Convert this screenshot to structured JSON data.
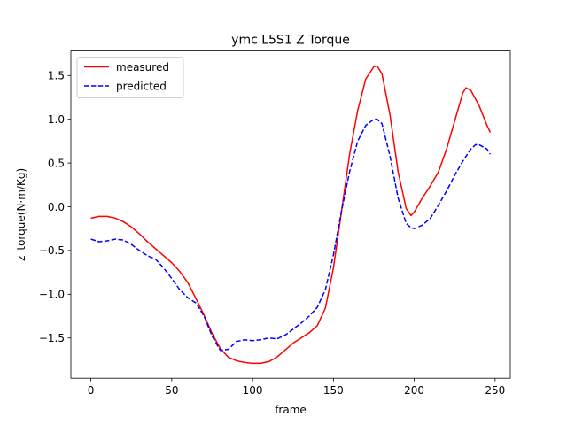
{
  "chart_data": {
    "type": "line",
    "title": "ymc L5S1 Z Torque",
    "xlabel": "frame",
    "ylabel": "z_torque(N·m/Kg)",
    "xlim": [
      -12.4,
      259.4
    ],
    "ylim": [
      -1.96,
      1.78
    ],
    "xticks": [
      0,
      50,
      100,
      150,
      200,
      250
    ],
    "yticks": [
      -1.5,
      -1.0,
      -0.5,
      0.0,
      0.5,
      1.0,
      1.5
    ],
    "xtick_labels": [
      "0",
      "50",
      "100",
      "150",
      "200",
      "250"
    ],
    "ytick_labels": [
      "−1.5",
      "−1.0",
      "−0.5",
      "0.0",
      "0.5",
      "1.0",
      "1.5"
    ],
    "grid": false,
    "legend_position": "top-left",
    "series": [
      {
        "name": "measured",
        "color": "#ff0000",
        "style": "solid",
        "x": [
          0,
          5,
          10,
          15,
          20,
          25,
          30,
          35,
          40,
          45,
          50,
          55,
          60,
          65,
          70,
          75,
          80,
          85,
          90,
          95,
          100,
          105,
          110,
          115,
          120,
          125,
          130,
          135,
          140,
          145,
          150,
          155,
          160,
          165,
          170,
          175,
          177,
          180,
          185,
          190,
          195,
          198,
          200,
          205,
          210,
          215,
          220,
          225,
          230,
          232,
          235,
          240,
          245,
          247
        ],
        "y": [
          -0.13,
          -0.11,
          -0.11,
          -0.13,
          -0.17,
          -0.23,
          -0.31,
          -0.4,
          -0.48,
          -0.56,
          -0.64,
          -0.74,
          -0.87,
          -1.05,
          -1.24,
          -1.45,
          -1.62,
          -1.72,
          -1.76,
          -1.78,
          -1.79,
          -1.79,
          -1.77,
          -1.72,
          -1.64,
          -1.56,
          -1.5,
          -1.44,
          -1.36,
          -1.16,
          -0.7,
          -0.05,
          0.6,
          1.1,
          1.46,
          1.6,
          1.61,
          1.52,
          1.05,
          0.4,
          -0.02,
          -0.1,
          -0.06,
          0.1,
          0.24,
          0.4,
          0.66,
          0.98,
          1.3,
          1.36,
          1.33,
          1.16,
          0.93,
          0.85
        ]
      },
      {
        "name": "predicted",
        "color": "#0000ff",
        "style": "dashed",
        "x": [
          0,
          5,
          10,
          15,
          20,
          25,
          30,
          35,
          40,
          45,
          50,
          55,
          60,
          65,
          70,
          75,
          80,
          85,
          90,
          95,
          100,
          105,
          110,
          115,
          120,
          125,
          130,
          135,
          140,
          145,
          150,
          155,
          160,
          165,
          170,
          175,
          177,
          180,
          185,
          190,
          195,
          198,
          200,
          205,
          210,
          215,
          220,
          225,
          230,
          235,
          238,
          240,
          245,
          247
        ],
        "y": [
          -0.37,
          -0.4,
          -0.39,
          -0.37,
          -0.38,
          -0.43,
          -0.5,
          -0.56,
          -0.6,
          -0.7,
          -0.82,
          -0.95,
          -1.04,
          -1.1,
          -1.25,
          -1.48,
          -1.64,
          -1.63,
          -1.54,
          -1.52,
          -1.53,
          -1.52,
          -1.5,
          -1.51,
          -1.47,
          -1.4,
          -1.33,
          -1.25,
          -1.15,
          -0.95,
          -0.55,
          -0.05,
          0.4,
          0.75,
          0.93,
          1.0,
          1.0,
          0.95,
          0.58,
          0.1,
          -0.19,
          -0.24,
          -0.25,
          -0.21,
          -0.13,
          0.02,
          0.18,
          0.36,
          0.52,
          0.66,
          0.71,
          0.71,
          0.66,
          0.6
        ]
      }
    ]
  }
}
